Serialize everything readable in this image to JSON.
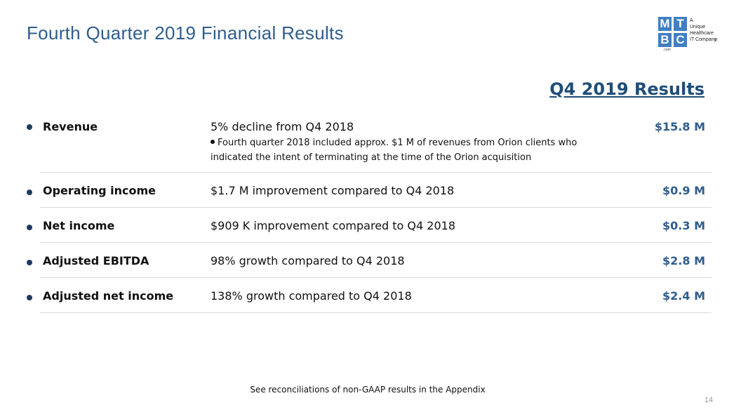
{
  "slide": {
    "title": "Fourth Quarter 2019 Financial Results",
    "results_heading": "Q4 2019 Results",
    "footnote": "See reconciliations of non-GAAP results in the Appendix",
    "page_number": "14"
  },
  "logo": {
    "letters": [
      "M",
      "T",
      "B",
      "C"
    ],
    "tagline": [
      "A",
      "Unique",
      "Healthcare",
      "IT Company"
    ],
    "registered": "®",
    "domain": ".com"
  },
  "rows": [
    {
      "label": "Revenue",
      "description": "5% decline from Q4 2018",
      "subnote": "Fourth quarter 2018 included approx. $1 M of revenues from Orion clients who indicated the intent of terminating at the time of the Orion acquisition",
      "value": "$15.8 M"
    },
    {
      "label": "Operating income",
      "description": "$1.7 M improvement compared to Q4 2018",
      "value": "$0.9 M"
    },
    {
      "label": "Net income",
      "description": "$909 K improvement compared to Q4 2018",
      "value": "$0.3 M"
    },
    {
      "label": "Adjusted EBITDA",
      "description": "98% growth compared to Q4 2018",
      "value": "$2.8 M"
    },
    {
      "label": "Adjusted net income",
      "description": "138% growth compared to Q4 2018",
      "value": "$2.4 M"
    }
  ],
  "colors": {
    "title": "#2e5d8e",
    "heading": "#1f4e79",
    "value": "#2e5d8e",
    "logo": "#3f7fc4"
  }
}
